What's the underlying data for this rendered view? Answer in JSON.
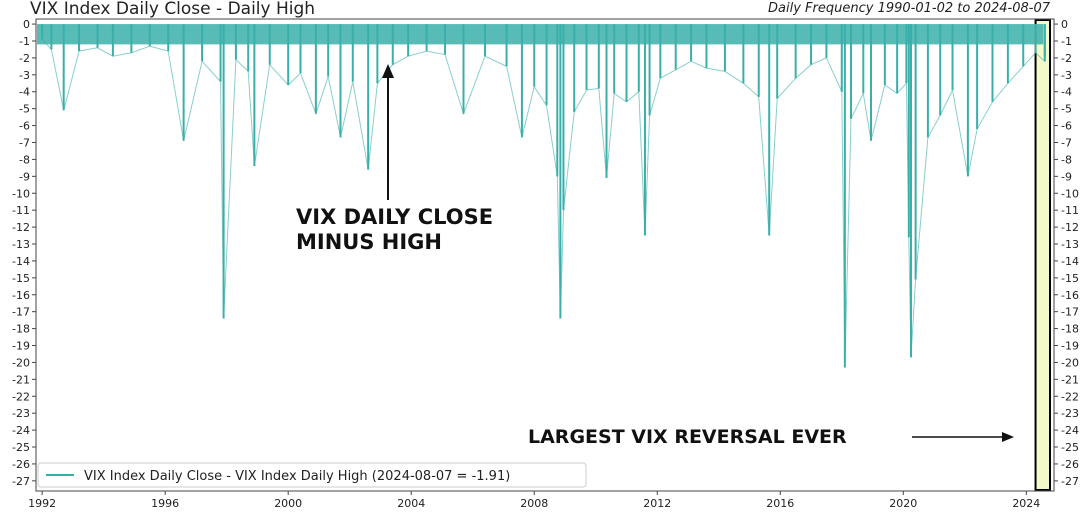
{
  "title": "VIX Index Daily Close - Daily High",
  "subtitle": "Daily Frequency 1990-01-02 to 2024-08-07",
  "colors": {
    "series": "#3aafa9",
    "highlight_fill": "#f4f9c8",
    "highlight_border": "#000000"
  },
  "chart_data": {
    "type": "line",
    "xlim": [
      1991.8,
      2024.9
    ],
    "ylim": [
      -27.6,
      0.3
    ],
    "x_ticks": [
      1992,
      1996,
      2000,
      2004,
      2008,
      2012,
      2016,
      2020,
      2024
    ],
    "x_tick_labels": [
      "1992",
      "1996",
      "2000",
      "2004",
      "2008",
      "2012",
      "2016",
      "2020",
      "2024"
    ],
    "y_ticks": [
      0,
      -1,
      -2,
      -3,
      -4,
      -5,
      -6,
      -7,
      -8,
      -9,
      -10,
      -11,
      -12,
      -13,
      -14,
      -15,
      -16,
      -17,
      -18,
      -19,
      -20,
      -21,
      -22,
      -23,
      -24,
      -25,
      -26,
      -27
    ],
    "y_tick_labels": [
      "0",
      "-1",
      "-2",
      "-3",
      "-4",
      "-5",
      "-6",
      "-7",
      "-8",
      "-9",
      "-10",
      "-11",
      "-12",
      "-13",
      "-14",
      "-15",
      "-16",
      "-17",
      "-18",
      "-19",
      "-20",
      "-21",
      "-22",
      "-23",
      "-24",
      "-25",
      "-26",
      "-27"
    ],
    "grid": false,
    "legend_position": "lower-left",
    "series": [
      {
        "name": "VIX Index Daily Close - VIX Index Daily High (2024-08-07 = -1.91)",
        "x": [
          1992.0,
          1992.3,
          1992.7,
          1993.2,
          1993.8,
          1994.3,
          1994.9,
          1995.5,
          1996.1,
          1996.6,
          1997.2,
          1997.8,
          1997.9,
          1998.3,
          1998.7,
          1998.9,
          1999.4,
          2000.0,
          2000.4,
          2000.9,
          2001.3,
          2001.7,
          2002.1,
          2002.6,
          2002.9,
          2003.4,
          2003.9,
          2004.5,
          2005.1,
          2005.7,
          2006.4,
          2007.1,
          2007.6,
          2008.0,
          2008.4,
          2008.75,
          2008.85,
          2008.95,
          2009.3,
          2009.7,
          2010.1,
          2010.35,
          2010.6,
          2011.0,
          2011.4,
          2011.6,
          2011.75,
          2012.1,
          2012.6,
          2013.1,
          2013.6,
          2014.2,
          2014.8,
          2015.3,
          2015.64,
          2015.9,
          2016.5,
          2017.0,
          2017.5,
          2018.0,
          2018.1,
          2018.3,
          2018.7,
          2018.95,
          2019.4,
          2019.8,
          2020.1,
          2020.18,
          2020.25,
          2020.4,
          2020.8,
          2021.2,
          2021.6,
          2022.1,
          2022.4,
          2022.9,
          2023.4,
          2023.9,
          2024.3,
          2024.6,
          2024.6
        ],
        "y": [
          -0.9,
          -1.5,
          -5.1,
          -1.6,
          -1.4,
          -1.9,
          -1.7,
          -1.3,
          -1.6,
          -6.9,
          -2.2,
          -3.4,
          -17.4,
          -2.1,
          -2.8,
          -8.4,
          -2.4,
          -3.6,
          -2.9,
          -5.3,
          -3.1,
          -6.7,
          -3.4,
          -8.6,
          -3.5,
          -2.4,
          -1.9,
          -1.6,
          -1.8,
          -5.3,
          -1.9,
          -2.5,
          -6.7,
          -3.7,
          -4.8,
          -9.0,
          -17.4,
          -11.0,
          -5.2,
          -3.9,
          -3.8,
          -9.1,
          -4.1,
          -4.6,
          -4.0,
          -12.5,
          -5.4,
          -3.2,
          -2.7,
          -2.2,
          -2.6,
          -2.8,
          -3.5,
          -4.3,
          -12.5,
          -4.4,
          -3.2,
          -2.4,
          -2.0,
          -4.0,
          -20.3,
          -5.6,
          -4.1,
          -6.9,
          -3.6,
          -4.1,
          -3.5,
          -12.6,
          -19.7,
          -15.1,
          -6.7,
          -5.4,
          -3.9,
          -9.0,
          -6.2,
          -4.6,
          -3.5,
          -2.5,
          -1.7,
          -2.2,
          -1.91
        ]
      }
    ],
    "annotations": [
      {
        "text": "VIX DAILY CLOSE",
        "x": 2001.6,
        "y": -11.5
      },
      {
        "text": "MINUS HIGH",
        "x": 2001.6,
        "y": -13.3
      },
      {
        "text": "LARGEST VIX REVERSAL EVER",
        "x": 2017.6,
        "y": -24.8
      }
    ],
    "highlight": {
      "x_start": 2024.3,
      "x_end": 2024.9
    }
  }
}
